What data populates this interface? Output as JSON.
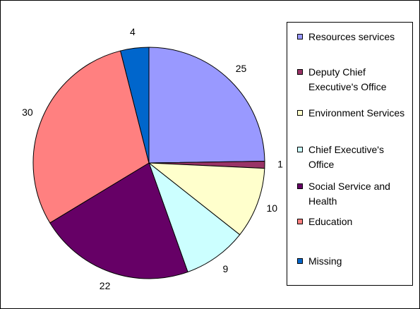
{
  "chart_data": {
    "type": "pie",
    "categories": [
      "Resources services",
      "Deputy Chief Executive's Office",
      "Environment Services",
      "Chief Executive's Office",
      "Social Service and Health",
      "Education",
      "Missing"
    ],
    "values": [
      25,
      1,
      10,
      9,
      22,
      30,
      4
    ],
    "colors": [
      "#9999ff",
      "#993366",
      "#ffffcc",
      "#ccffff",
      "#660066",
      "#ff8080",
      "#0066cc"
    ],
    "legend": "right"
  }
}
